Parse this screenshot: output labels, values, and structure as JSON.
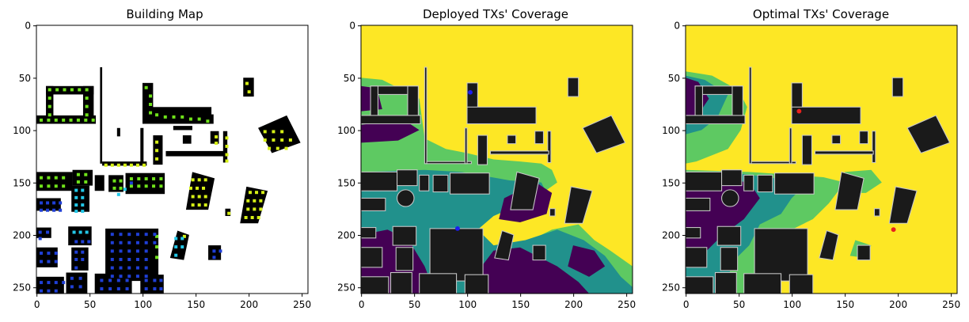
{
  "chart_data": [
    {
      "type": "heatmap",
      "title": "Building Map",
      "xticks": [
        0,
        50,
        100,
        150,
        200,
        250
      ],
      "yticks": [
        0,
        50,
        100,
        150,
        200,
        250
      ],
      "xlim": [
        0,
        256
      ],
      "ylim": [
        256,
        0
      ],
      "colors": {
        "background": "#ffffff",
        "building": "#000000",
        "green_marker": "#6fe21a",
        "yellow_marker": "#d6f016",
        "cyan_marker": "#23c8e8",
        "blue_marker": "#1f3fd6"
      }
    },
    {
      "type": "heatmap",
      "title": "Deployed TXs' Coverage",
      "xticks": [
        0,
        50,
        100,
        150,
        200,
        250
      ],
      "yticks": [
        0,
        50,
        100,
        150,
        200,
        250
      ],
      "xlim": [
        0,
        256
      ],
      "ylim": [
        256,
        0
      ],
      "tx_points": [
        {
          "x": 91,
          "y": 194
        },
        {
          "x": 103,
          "y": 64
        }
      ],
      "colors": {
        "high": "#fde725",
        "mid_high": "#5ec962",
        "mid": "#21918c",
        "low": "#440154",
        "building": "#1a1a1a",
        "tx": "#1d1df0"
      }
    },
    {
      "type": "heatmap",
      "title": "Optimal TXs' Coverage",
      "xticks": [
        0,
        50,
        100,
        150,
        200,
        250
      ],
      "yticks": [
        0,
        50,
        100,
        150,
        200,
        250
      ],
      "xlim": [
        0,
        256
      ],
      "ylim": [
        256,
        0
      ],
      "tx_points": [
        {
          "x": 107,
          "y": 82
        },
        {
          "x": 196,
          "y": 195
        }
      ],
      "colors": {
        "high": "#fde725",
        "mid_high": "#5ec962",
        "mid": "#21918c",
        "low": "#440154",
        "building": "#1a1a1a",
        "tx": "#e8211d"
      }
    }
  ]
}
